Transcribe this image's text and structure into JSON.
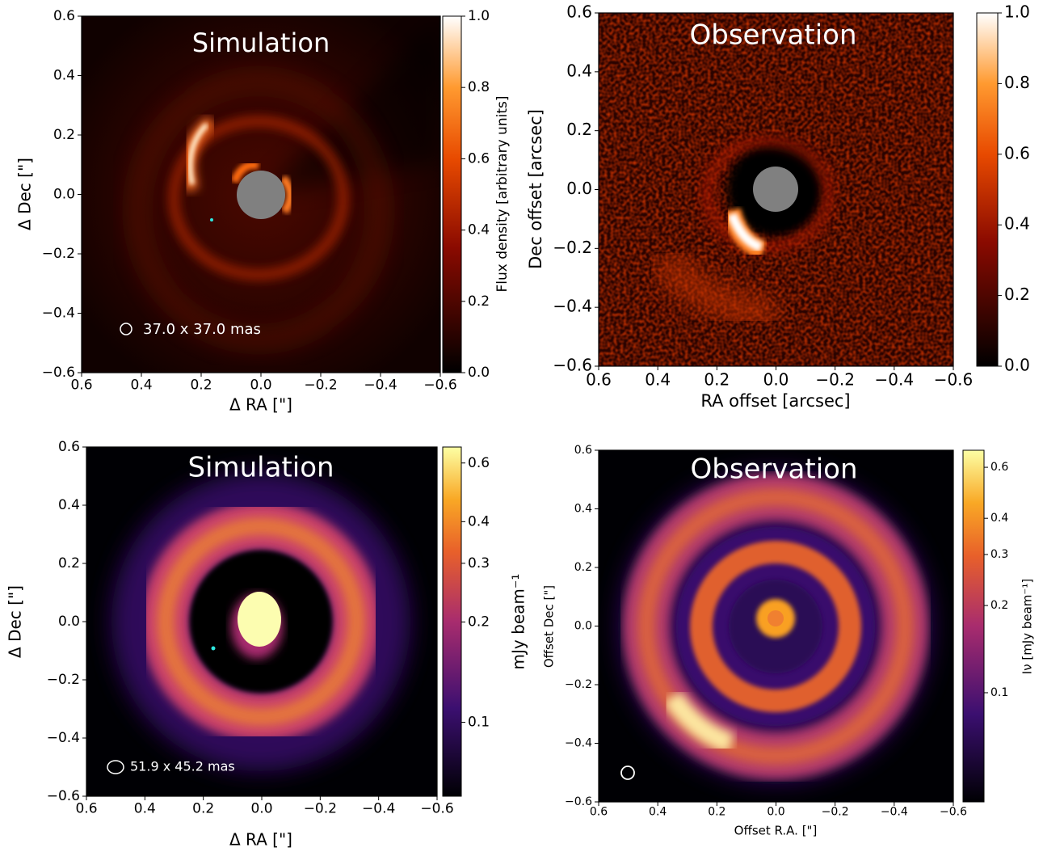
{
  "chart_data": [
    {
      "type": "image",
      "title": "Simulation",
      "xlabel": "Δ RA [\"]",
      "ylabel": "Δ Dec [\"]",
      "xlim": [
        0.6,
        -0.6
      ],
      "ylim": [
        -0.6,
        0.6
      ],
      "xticks": [
        0.6,
        0.4,
        0.2,
        {
          "value": 0,
          "label": "0.0"
        },
        {
          "value": -0.2,
          "label": "−0.2"
        },
        {
          "value": -0.4,
          "label": "−0.4"
        },
        {
          "value": -0.6,
          "label": "−0.6"
        }
      ],
      "yticks": [
        {
          "value": -0.6,
          "label": "−0.6"
        },
        {
          "value": -0.4,
          "label": "−0.4"
        },
        {
          "value": -0.2,
          "label": "−0.2"
        },
        {
          "value": 0,
          "label": "0.0"
        },
        0.2,
        0.4,
        0.6
      ],
      "colorbar": {
        "label": "Flux density [arbitrary units]",
        "lim": [
          0,
          1
        ],
        "scale": "linear",
        "ticks": [
          {
            "value": 0,
            "label": "0.0"
          },
          0.2,
          0.4,
          0.6,
          0.8,
          {
            "value": 1,
            "label": "1.0"
          }
        ]
      },
      "beam_label": "37.0 x 37.0 mas"
    },
    {
      "type": "image",
      "title": "Observation",
      "xlabel": "RA offset [arcsec]",
      "ylabel": "Dec offset [arcsec]",
      "xlim": [
        0.6,
        -0.6
      ],
      "ylim": [
        -0.6,
        0.6
      ],
      "xticks": [
        0.6,
        0.4,
        0.2,
        {
          "value": 0,
          "label": "0.0"
        },
        {
          "value": -0.2,
          "label": "−0.2"
        },
        {
          "value": -0.4,
          "label": "−0.4"
        },
        {
          "value": -0.6,
          "label": "−0.6"
        }
      ],
      "yticks": [
        {
          "value": -0.6,
          "label": "−0.6"
        },
        {
          "value": -0.4,
          "label": "−0.4"
        },
        {
          "value": -0.2,
          "label": "−0.2"
        },
        {
          "value": 0,
          "label": "0.0"
        },
        0.2,
        0.4,
        0.6
      ],
      "colorbar": {
        "lim": [
          0,
          1
        ],
        "scale": "linear",
        "ticks": [
          {
            "value": 0,
            "label": "0.0"
          },
          0.2,
          0.4,
          0.6,
          0.8,
          {
            "value": 1,
            "label": "1.0"
          }
        ]
      }
    },
    {
      "type": "image",
      "title": "Simulation",
      "xlabel": "Δ RA [\"]",
      "ylabel": "Δ Dec [\"]",
      "xlim": [
        0.6,
        -0.6
      ],
      "ylim": [
        -0.6,
        0.6
      ],
      "xticks": [
        0.6,
        0.4,
        0.2,
        {
          "value": 0,
          "label": "0.0"
        },
        {
          "value": -0.2,
          "label": "−0.2"
        },
        {
          "value": -0.4,
          "label": "−0.4"
        },
        {
          "value": -0.6,
          "label": "−0.6"
        }
      ],
      "yticks": [
        {
          "value": -0.6,
          "label": "−0.6"
        },
        {
          "value": -0.4,
          "label": "−0.4"
        },
        {
          "value": -0.2,
          "label": "−0.2"
        },
        {
          "value": 0,
          "label": "0.0"
        },
        0.2,
        0.4,
        0.6
      ],
      "colorbar": {
        "label": "mJy beam⁻¹",
        "lim": [
          0.06,
          0.67
        ],
        "scale": "log",
        "ticks": [
          0.1,
          0.2,
          0.3,
          0.4,
          0.6
        ]
      },
      "beam_label": "51.9 x 45.2 mas"
    },
    {
      "type": "image",
      "title": "Observation",
      "xlabel": "Offset R.A. [\"]",
      "ylabel": "Offset Dec [\"]",
      "xlim": [
        0.6,
        -0.6
      ],
      "ylim": [
        -0.6,
        0.6
      ],
      "xticks": [
        0.6,
        0.4,
        0.2,
        {
          "value": 0,
          "label": "0.0"
        },
        {
          "value": -0.2,
          "label": "−0.2"
        },
        {
          "value": -0.4,
          "label": "−0.4"
        },
        {
          "value": -0.6,
          "label": "−0.6"
        }
      ],
      "yticks": [
        {
          "value": -0.6,
          "label": "−0.6"
        },
        {
          "value": -0.4,
          "label": "−0.4"
        },
        {
          "value": -0.2,
          "label": "−0.2"
        },
        {
          "value": 0,
          "label": "0.0"
        },
        0.2,
        0.4,
        0.6
      ],
      "colorbar": {
        "label": "Iν [mJy beam⁻¹]",
        "lim": [
          0.042,
          0.687
        ],
        "scale": "log",
        "ticks": [
          0.1,
          0.2,
          0.3,
          0.4,
          0.6
        ]
      }
    }
  ]
}
